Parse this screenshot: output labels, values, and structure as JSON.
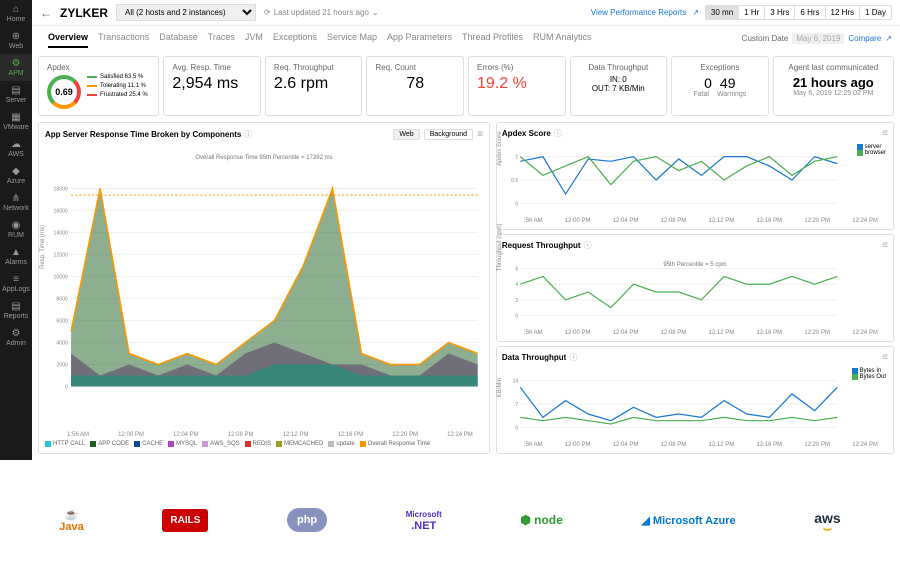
{
  "sidebar": {
    "items": [
      {
        "label": "Home",
        "icon": "⌂"
      },
      {
        "label": "Web",
        "icon": "⊕"
      },
      {
        "label": "APM",
        "icon": "⚙",
        "active": true
      },
      {
        "label": "Server",
        "icon": "▤"
      },
      {
        "label": "VMware",
        "icon": "▦"
      },
      {
        "label": "AWS",
        "icon": "☁"
      },
      {
        "label": "Azure",
        "icon": "◆"
      },
      {
        "label": "Network",
        "icon": "⋔"
      },
      {
        "label": "RUM",
        "icon": "◉"
      },
      {
        "label": "Alarms",
        "icon": "▲"
      },
      {
        "label": "AppLogs",
        "icon": "≡"
      },
      {
        "label": "Reports",
        "icon": "▤"
      },
      {
        "label": "Admin",
        "icon": "⚙"
      }
    ]
  },
  "topbar": {
    "brand": "ZYLKER",
    "host_select": "All (2 hosts and 2 instances)",
    "last_updated": "Last updated 21 hours ago",
    "perf_reports": "View Performance Reports",
    "time_ranges": [
      "30 mn",
      "1 Hr",
      "3 Hrs",
      "6 Hrs",
      "12 Hrs",
      "1 Day"
    ],
    "active_range": "30 mn",
    "custom_date_label": "Custom Date",
    "custom_date_value": "May 6, 2019",
    "compare": "Compare"
  },
  "tabs": [
    "Overview",
    "Transactions",
    "Database",
    "Traces",
    "JVM",
    "Exceptions",
    "Service Map",
    "App Parameters",
    "Thread Profiles",
    "RUM Analytics"
  ],
  "active_tab": "Overview",
  "metrics": {
    "apdex": {
      "title": "Apdex",
      "value": "0.69",
      "legend": [
        {
          "label": "Satisfied 63.5 %",
          "color": "#4caf50"
        },
        {
          "label": "Tolerating 11.1 %",
          "color": "#ff9800"
        },
        {
          "label": "Frustrated 25.4 %",
          "color": "#f44336"
        }
      ]
    },
    "resp_time": {
      "title": "Avg. Resp. Time",
      "value": "2,954 ms"
    },
    "throughput": {
      "title": "Req. Throughput",
      "value": "2.6 rpm"
    },
    "req_count": {
      "title": "Req. Count",
      "value": "78"
    },
    "errors": {
      "title": "Errors (%)",
      "value": "19.2 %"
    },
    "data_tp": {
      "title": "Data Throughput",
      "in": "IN: 0",
      "out": "OUT: 7 KB/Min"
    },
    "exceptions": {
      "title": "Exceptions",
      "fatal": "0",
      "fatal_label": "Fatal",
      "warnings": "49",
      "warnings_label": "Warnings"
    },
    "agent": {
      "title": "Agent last communicated",
      "value": "21 hours ago",
      "sub": "May 6, 2019 12:25:02 PM"
    }
  },
  "main_chart": {
    "title": "App Server Response Time Broken by Components",
    "tabs": [
      "Web",
      "Background"
    ],
    "annotation": "Overall Response Time 95th Percentile = 17392 ms",
    "ylabel": "Resp. Time (ms)",
    "yaxis": [
      "0",
      "2000",
      "4000",
      "6000",
      "8000",
      "10000",
      "12000",
      "14000",
      "16000",
      "18000"
    ],
    "xaxis": [
      "1:56 AM",
      "12:00 PM",
      "12:04 PM",
      "12:08 PM",
      "12:12 PM",
      "12:16 PM",
      "12:20 PM",
      "12:24 PM"
    ],
    "legend": [
      {
        "label": "HTTP CALL",
        "color": "#26c6da"
      },
      {
        "label": "APP CODE",
        "color": "#1b5e20"
      },
      {
        "label": "CACHE",
        "color": "#0d47a1"
      },
      {
        "label": "MYSQL",
        "color": "#ab47bc"
      },
      {
        "label": "AWS_SQS",
        "color": "#ce93d8"
      },
      {
        "label": "REDIS",
        "color": "#d32f2f"
      },
      {
        "label": "MEMCACHED",
        "color": "#9e9d24"
      },
      {
        "label": "update",
        "color": "#bdbdbd"
      },
      {
        "label": "Overall Response Time",
        "color": "#ff9800"
      }
    ],
    "series": {
      "overall": [
        5,
        18,
        3,
        2,
        3,
        2,
        4,
        6,
        11,
        18,
        3,
        2,
        2,
        4,
        3
      ],
      "mysql": [
        3,
        1,
        2,
        1,
        2,
        1,
        3,
        4,
        3,
        2,
        2,
        1,
        1,
        3,
        2
      ],
      "http": [
        1,
        1,
        1,
        1,
        1,
        1,
        1,
        2,
        2,
        2,
        1,
        1,
        1,
        1,
        1
      ]
    },
    "ymax": 18000,
    "line95": 17392
  },
  "apdex_chart": {
    "title": "Apdex Score",
    "ylabel": "Apdex Score",
    "xaxis": [
      ":56 AM",
      "12:00 PM",
      "12:04 PM",
      "12:08 PM",
      "12:12 PM",
      "12:16 PM",
      "12:20 PM",
      "12:24 PM"
    ],
    "legend": [
      {
        "label": "server",
        "color": "#1976d2"
      },
      {
        "label": "browser",
        "color": "#4caf50"
      }
    ],
    "server": [
      0.9,
      1,
      0.2,
      0.95,
      0.9,
      1,
      0.5,
      0.95,
      0.6,
      1,
      1,
      0.8,
      0.5,
      1,
      0.85
    ],
    "browser": [
      1,
      0.6,
      0.8,
      1,
      0.4,
      0.9,
      1,
      0.7,
      0.9,
      0.5,
      0.8,
      1,
      0.6,
      0.9,
      1
    ],
    "ymax": 1,
    "yticks": [
      "0",
      "0.5",
      "1"
    ]
  },
  "req_chart": {
    "title": "Request Throughput",
    "ylabel": "Throughput (cpm)",
    "annotation": "95th Percentile = 5 cpm",
    "xaxis": [
      ":56 AM",
      "12:00 PM",
      "12:04 PM",
      "12:08 PM",
      "12:12 PM",
      "12:16 PM",
      "12:20 PM",
      "12:24 PM"
    ],
    "data": [
      4,
      5,
      2,
      3,
      1,
      4,
      3,
      3,
      2,
      5,
      4,
      4,
      5,
      4,
      5
    ],
    "ymax": 6,
    "color": "#4caf50",
    "yticks": [
      "0",
      "2",
      "4",
      "6"
    ]
  },
  "data_chart": {
    "title": "Data Throughput",
    "ylabel": "KB/Min",
    "xaxis": [
      ":56 AM",
      "12:00 PM",
      "12:04 PM",
      "12:08 PM",
      "12:12 PM",
      "12:16 PM",
      "12:20 PM",
      "12:24 PM"
    ],
    "legend": [
      {
        "label": "Bytes In",
        "color": "#1976d2"
      },
      {
        "label": "Bytes Out",
        "color": "#4caf50"
      }
    ],
    "in": [
      12,
      3,
      8,
      4,
      2,
      6,
      3,
      4,
      3,
      8,
      4,
      3,
      10,
      5,
      12
    ],
    "out": [
      3,
      2,
      3,
      2,
      1,
      3,
      2,
      2,
      2,
      3,
      2,
      2,
      3,
      2,
      3
    ],
    "ymax": 14,
    "yticks": [
      "0",
      "7",
      "14"
    ]
  },
  "logos": [
    "Java",
    "RAILS",
    "php",
    ".NET",
    "node",
    "Microsoft Azure",
    "aws"
  ]
}
